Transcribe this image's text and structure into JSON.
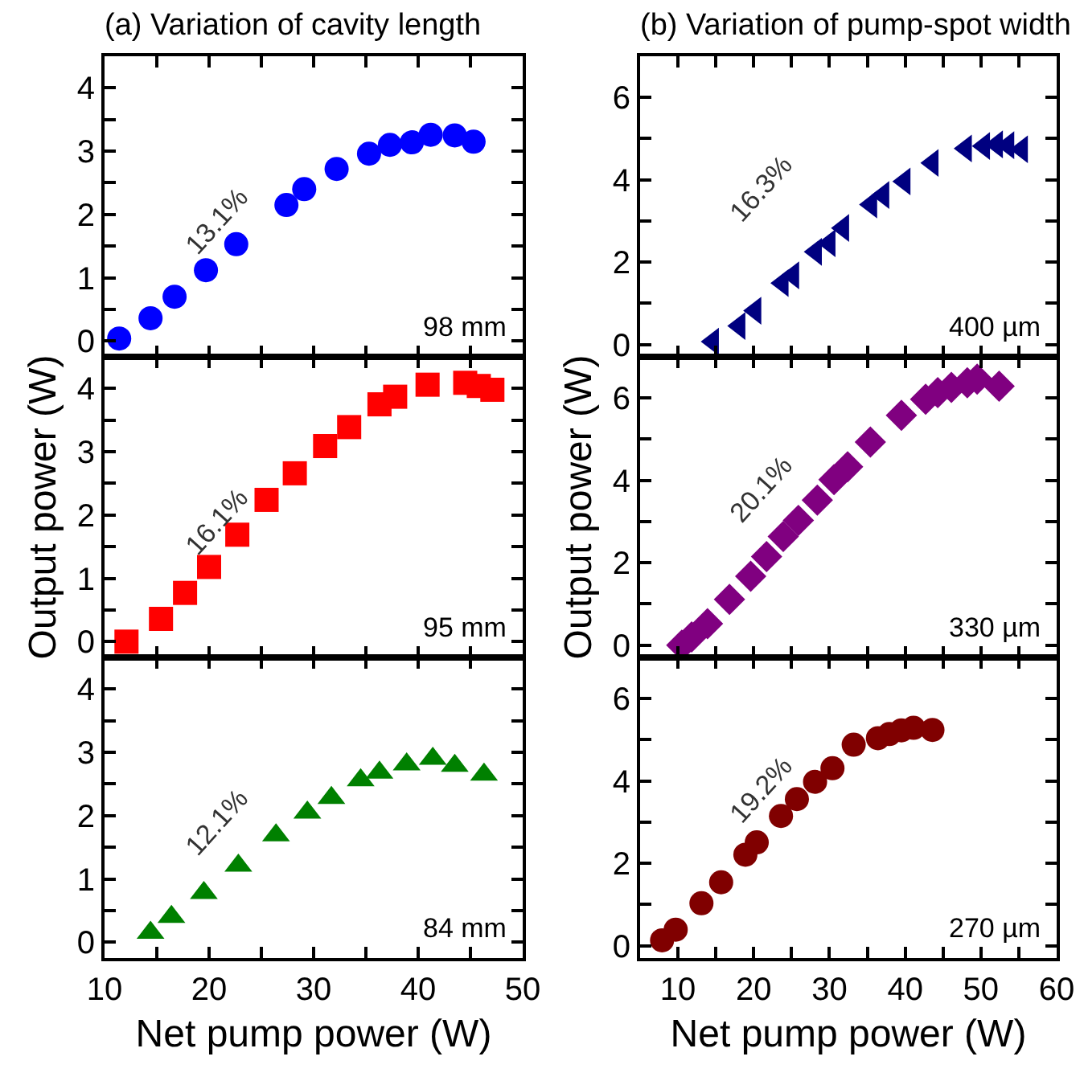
{
  "chart_data": [
    {
      "type": "scatter",
      "title": "(a) Variation of cavity length",
      "marker": "circle",
      "color": "#0000ff",
      "tick_labels": "y",
      "grid": false,
      "x": [
        11.4,
        14.4,
        16.7,
        19.7,
        22.6,
        27.4,
        29.1,
        32.2,
        35.3,
        37.3,
        39.4,
        41.2,
        43.5,
        45.3
      ],
      "values": [
        0.04,
        0.36,
        0.7,
        1.12,
        1.53,
        2.15,
        2.4,
        2.72,
        2.96,
        3.1,
        3.14,
        3.26,
        3.25,
        3.15
      ],
      "xlim": [
        10,
        50
      ],
      "ylim": [
        -0.25,
        4.5
      ],
      "xticks": [
        10,
        {
          "value": 15,
          "label": null
        },
        20,
        {
          "value": 25,
          "label": null
        },
        30,
        {
          "value": 35,
          "label": null
        },
        40,
        {
          "value": 45,
          "label": null
        },
        50
      ],
      "yticks": [
        0,
        {
          "value": 0.5,
          "label": null
        },
        1,
        {
          "value": 1.5,
          "label": null
        },
        2,
        {
          "value": 2.5,
          "label": null
        },
        3,
        {
          "value": 3.5,
          "label": null
        },
        4
      ],
      "annotations": [
        "13.1%",
        "98 mm"
      ]
    },
    {
      "type": "scatter",
      "ylabel": "Output power (W)",
      "marker": "square",
      "color": "#ff0000",
      "tick_labels": "y",
      "grid": false,
      "x": [
        12.1,
        15.4,
        17.7,
        20.0,
        22.7,
        25.5,
        28.2,
        31.1,
        33.4,
        36.3,
        37.8,
        40.9,
        44.5,
        45.8,
        47.1
      ],
      "values": [
        0.0,
        0.36,
        0.77,
        1.18,
        1.69,
        2.24,
        2.66,
        3.09,
        3.39,
        3.75,
        3.87,
        4.06,
        4.09,
        4.04,
        3.98
      ],
      "xlim": [
        10,
        50
      ],
      "ylim": [
        -0.25,
        4.5
      ],
      "xticks": [
        10,
        {
          "value": 15,
          "label": null
        },
        20,
        {
          "value": 25,
          "label": null
        },
        30,
        {
          "value": 35,
          "label": null
        },
        40,
        {
          "value": 45,
          "label": null
        },
        50
      ],
      "yticks": [
        0,
        {
          "value": 0.5,
          "label": null
        },
        1,
        {
          "value": 1.5,
          "label": null
        },
        2,
        {
          "value": 2.5,
          "label": null
        },
        3,
        {
          "value": 3.5,
          "label": null
        },
        4
      ],
      "annotations": [
        "16.1%",
        "95 mm"
      ]
    },
    {
      "type": "scatter",
      "xlabel": "Net pump power (W)",
      "marker": "triangle",
      "color": "#008000",
      "grid": false,
      "x": [
        14.4,
        16.4,
        19.5,
        22.8,
        26.4,
        29.4,
        31.7,
        34.5,
        36.3,
        38.9,
        41.4,
        43.5,
        46.3
      ],
      "values": [
        0.15,
        0.4,
        0.78,
        1.21,
        1.69,
        2.05,
        2.28,
        2.56,
        2.68,
        2.81,
        2.9,
        2.79,
        2.65
      ],
      "xlim": [
        10,
        50
      ],
      "ylim": [
        -0.25,
        4.5
      ],
      "xticks": [
        10,
        {
          "value": 15,
          "label": null
        },
        20,
        {
          "value": 25,
          "label": null
        },
        30,
        {
          "value": 35,
          "label": null
        },
        40,
        {
          "value": 45,
          "label": null
        },
        50
      ],
      "yticks": [
        0,
        {
          "value": 0.5,
          "label": null
        },
        1,
        {
          "value": 1.5,
          "label": null
        },
        2,
        {
          "value": 2.5,
          "label": null
        },
        3,
        {
          "value": 3.5,
          "label": null
        },
        4
      ],
      "annotations": [
        "12.1%",
        "84 mm"
      ]
    },
    {
      "type": "scatter",
      "title": "(b) Variation of pump-spot width",
      "marker": "triangle-left",
      "color": "#000080",
      "tick_labels": "y",
      "grid": false,
      "x": [
        14.6,
        18.1,
        20.2,
        23.8,
        25.2,
        28.2,
        30.0,
        31.8,
        35.5,
        37.1,
        39.9,
        43.6,
        48.0,
        50.4,
        52.1,
        53.6,
        55.4
      ],
      "values": [
        0.07,
        0.45,
        0.82,
        1.49,
        1.68,
        2.25,
        2.46,
        2.83,
        3.4,
        3.63,
        3.96,
        4.41,
        4.76,
        4.82,
        4.86,
        4.84,
        4.74
      ],
      "xlim": [
        5,
        60
      ],
      "ylim": [
        -0.3,
        7
      ],
      "xticks": [
        10,
        {
          "value": 15,
          "label": null
        },
        20,
        {
          "value": 25,
          "label": null
        },
        30,
        {
          "value": 35,
          "label": null
        },
        40,
        {
          "value": 45,
          "label": null
        },
        50,
        {
          "value": 55,
          "label": null
        },
        60
      ],
      "yticks": [
        0,
        {
          "value": 1,
          "label": null
        },
        2,
        {
          "value": 3,
          "label": null
        },
        4,
        {
          "value": 5,
          "label": null
        },
        6
      ],
      "annotations": [
        "16.3%",
        "400 µm"
      ]
    },
    {
      "type": "scatter",
      "ylabel": "Output power (W)",
      "marker": "diamond",
      "color": "#800080",
      "tick_labels": "y",
      "grid": false,
      "x": [
        10.5,
        11.8,
        13.9,
        16.8,
        19.6,
        21.7,
        23.9,
        25.9,
        28.4,
        30.6,
        32.4,
        35.4,
        39.5,
        42.7,
        44.3,
        46.1,
        48.2,
        49.5,
        52.4
      ],
      "values": [
        0.0,
        0.2,
        0.52,
        1.11,
        1.67,
        2.15,
        2.64,
        3.03,
        3.52,
        4.02,
        4.33,
        4.93,
        5.58,
        5.97,
        6.13,
        6.26,
        6.37,
        6.46,
        6.29
      ],
      "xlim": [
        5,
        60
      ],
      "ylim": [
        -0.3,
        7
      ],
      "xticks": [
        10,
        {
          "value": 15,
          "label": null
        },
        20,
        {
          "value": 25,
          "label": null
        },
        30,
        {
          "value": 35,
          "label": null
        },
        40,
        {
          "value": 45,
          "label": null
        },
        50,
        {
          "value": 55,
          "label": null
        },
        60
      ],
      "yticks": [
        0,
        {
          "value": 1,
          "label": null
        },
        2,
        {
          "value": 3,
          "label": null
        },
        4,
        {
          "value": 5,
          "label": null
        },
        6
      ],
      "annotations": [
        "20.1%",
        "330 µm"
      ]
    },
    {
      "type": "scatter",
      "xlabel": "Net pump power (W)",
      "color": "#800000",
      "grid": false,
      "x": [
        7.9,
        9.7,
        13.1,
        15.7,
        18.9,
        20.4,
        23.6,
        25.7,
        28.1,
        30.4,
        33.2,
        36.4,
        37.9,
        39.5,
        41.1,
        43.6
      ],
      "values": [
        0.13,
        0.39,
        1.03,
        1.54,
        2.21,
        2.51,
        3.15,
        3.56,
        3.98,
        4.31,
        4.88,
        5.04,
        5.14,
        5.23,
        5.29,
        5.24
      ],
      "xlim": [
        5,
        60
      ],
      "ylim": [
        -0.3,
        7
      ],
      "xticks": [
        10,
        {
          "value": 15,
          "label": null
        },
        20,
        {
          "value": 25,
          "label": null
        },
        30,
        {
          "value": 35,
          "label": null
        },
        40,
        {
          "value": 45,
          "label": null
        },
        50,
        {
          "value": 55,
          "label": null
        },
        60
      ],
      "yticks": [
        0,
        {
          "value": 1,
          "label": null
        },
        2,
        {
          "value": 3,
          "label": null
        },
        4,
        {
          "value": 5,
          "label": null
        },
        6
      ],
      "annotations": [
        "19.2%",
        "270 µm"
      ]
    }
  ]
}
